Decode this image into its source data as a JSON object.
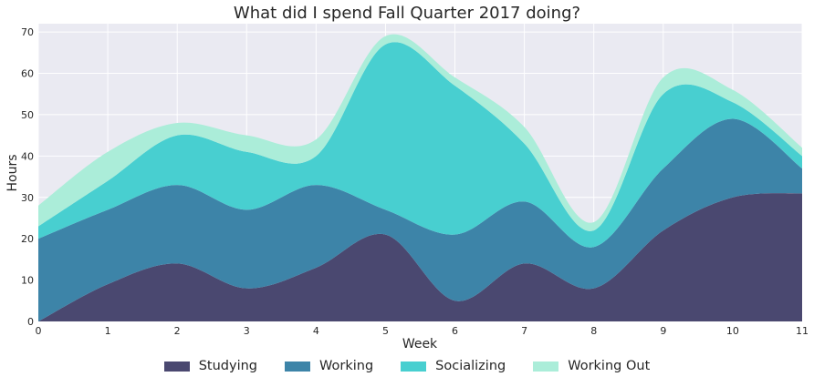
{
  "chart_data": {
    "type": "area",
    "title": "What did I spend Fall Quarter 2017 doing?",
    "xlabel": "Week",
    "ylabel": "Hours",
    "x": [
      0,
      1,
      2,
      3,
      4,
      5,
      6,
      7,
      8,
      9,
      10,
      11
    ],
    "xlim": [
      0,
      11
    ],
    "ylim": [
      0,
      72
    ],
    "xticks": [
      0,
      1,
      2,
      3,
      4,
      5,
      6,
      7,
      8,
      9,
      10,
      11
    ],
    "yticks": [
      0,
      10,
      20,
      30,
      40,
      50,
      60,
      70
    ],
    "stacked": true,
    "smooth": true,
    "grid": true,
    "legend_position": "bottom-center",
    "series": [
      {
        "name": "Studying",
        "color": "#4a4870",
        "values": [
          0,
          9,
          14,
          8,
          13,
          21,
          5,
          14,
          8,
          22,
          30,
          31
        ]
      },
      {
        "name": "Working",
        "color": "#3d84a8",
        "values": [
          20,
          18,
          19,
          19,
          20,
          6,
          16,
          15,
          10,
          15,
          19,
          6
        ]
      },
      {
        "name": "Socializing",
        "color": "#48cfd0",
        "values": [
          3,
          7,
          12,
          14,
          7,
          40,
          36,
          14,
          4,
          18,
          4,
          3
        ]
      },
      {
        "name": "Working Out",
        "color": "#abedd9",
        "values": [
          5,
          7,
          3,
          4,
          4,
          2,
          2,
          4,
          2,
          4,
          3,
          2
        ]
      }
    ]
  }
}
